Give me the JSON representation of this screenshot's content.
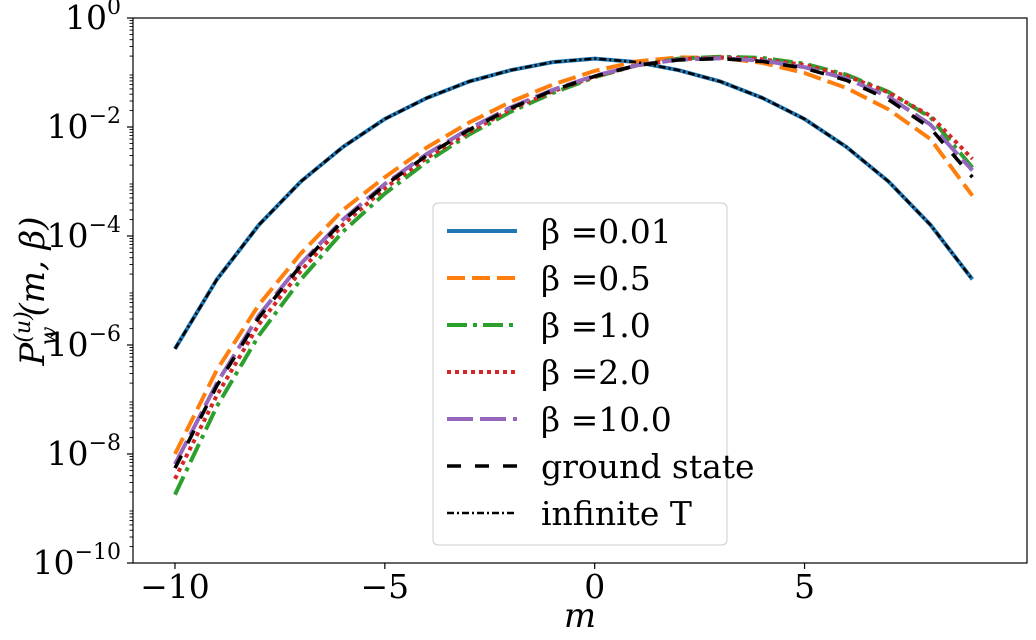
{
  "chart_data": {
    "type": "line",
    "title": "",
    "xlabel": "m",
    "ylabel": "P_w^{(u)}(m, β)",
    "yscale": "log",
    "xlim": [
      -11,
      10.3
    ],
    "ylim": [
      1e-10,
      1
    ],
    "xticks": [
      {
        "value": -10,
        "label": "−10"
      },
      {
        "value": -5,
        "label": "−5"
      },
      {
        "value": 0,
        "label": "0"
      },
      {
        "value": 5,
        "label": "5"
      }
    ],
    "yticks": [
      {
        "exp": 0,
        "base": "10",
        "sup": "0"
      },
      {
        "exp": -2,
        "base": "10",
        "sup": "−2"
      },
      {
        "exp": -4,
        "base": "10",
        "sup": "−4"
      },
      {
        "exp": -6,
        "base": "10",
        "sup": "−6"
      },
      {
        "exp": -8,
        "base": "10",
        "sup": "−8"
      },
      {
        "exp": -10,
        "base": "10",
        "sup": "−10"
      }
    ],
    "grid": false,
    "legend_position": "bottom-center",
    "x": [
      -10,
      -9,
      -8,
      -7,
      -6,
      -5,
      -4,
      -3,
      -2,
      -1,
      0,
      1,
      2,
      3,
      4,
      5,
      6,
      7,
      8,
      9
    ],
    "series": [
      {
        "name": "β =0.01",
        "color": "#1f77b4",
        "dash": "solid",
        "values": [
          8.5e-07,
          1.6e-05,
          0.00016,
          0.001,
          0.0043,
          0.014,
          0.034,
          0.068,
          0.11,
          0.155,
          0.18,
          0.155,
          0.11,
          0.068,
          0.034,
          0.014,
          0.0043,
          0.001,
          0.00016,
          1.6e-05
        ]
      },
      {
        "name": "β =0.5",
        "color": "#ff7f0e",
        "dash": "dashed",
        "values": [
          1e-08,
          3.5e-07,
          5.5e-06,
          4.8e-05,
          0.0003,
          0.0012,
          0.0042,
          0.012,
          0.029,
          0.06,
          0.107,
          0.16,
          0.19,
          0.185,
          0.15,
          0.098,
          0.052,
          0.021,
          0.006,
          0.00055
        ]
      },
      {
        "name": "β =1.0",
        "color": "#2ca02c",
        "dash": "dashdot",
        "values": [
          1.8e-09,
          7.5e-08,
          1.5e-06,
          1.6e-05,
          0.00012,
          0.0006,
          0.0023,
          0.0072,
          0.019,
          0.042,
          0.082,
          0.135,
          0.18,
          0.195,
          0.185,
          0.145,
          0.091,
          0.044,
          0.015,
          0.0018
        ]
      },
      {
        "name": "β =2.0",
        "color": "#d62728",
        "dash": "dotted",
        "values": [
          3.5e-09,
          1.2e-07,
          2.4e-06,
          2.3e-05,
          0.00016,
          0.00075,
          0.0027,
          0.008,
          0.021,
          0.045,
          0.084,
          0.135,
          0.175,
          0.19,
          0.175,
          0.137,
          0.087,
          0.043,
          0.016,
          0.0026
        ]
      },
      {
        "name": "β =10.0",
        "color": "#9467bd",
        "dash": "longdash",
        "values": [
          6.5e-09,
          2e-07,
          3.5e-06,
          3.1e-05,
          0.0002,
          0.0009,
          0.0032,
          0.0092,
          0.023,
          0.048,
          0.087,
          0.136,
          0.172,
          0.182,
          0.165,
          0.125,
          0.077,
          0.036,
          0.011,
          0.0016
        ]
      },
      {
        "name": "ground state",
        "color": "#000000",
        "dash": "bigdash",
        "values": [
          5.5e-09,
          1.8e-07,
          3.2e-06,
          2.9e-05,
          0.00019,
          0.00085,
          0.003,
          0.0088,
          0.022,
          0.047,
          0.085,
          0.135,
          0.17,
          0.18,
          0.16,
          0.12,
          0.072,
          0.032,
          0.0095,
          0.0012
        ]
      },
      {
        "name": "infinite T",
        "color": "#000000",
        "dash": "finedashdot",
        "values": [
          8.5e-07,
          1.6e-05,
          0.00016,
          0.001,
          0.0043,
          0.014,
          0.034,
          0.068,
          0.11,
          0.155,
          0.18,
          0.155,
          0.11,
          0.068,
          0.034,
          0.014,
          0.0043,
          0.001,
          0.00016,
          1.6e-05
        ]
      }
    ]
  }
}
